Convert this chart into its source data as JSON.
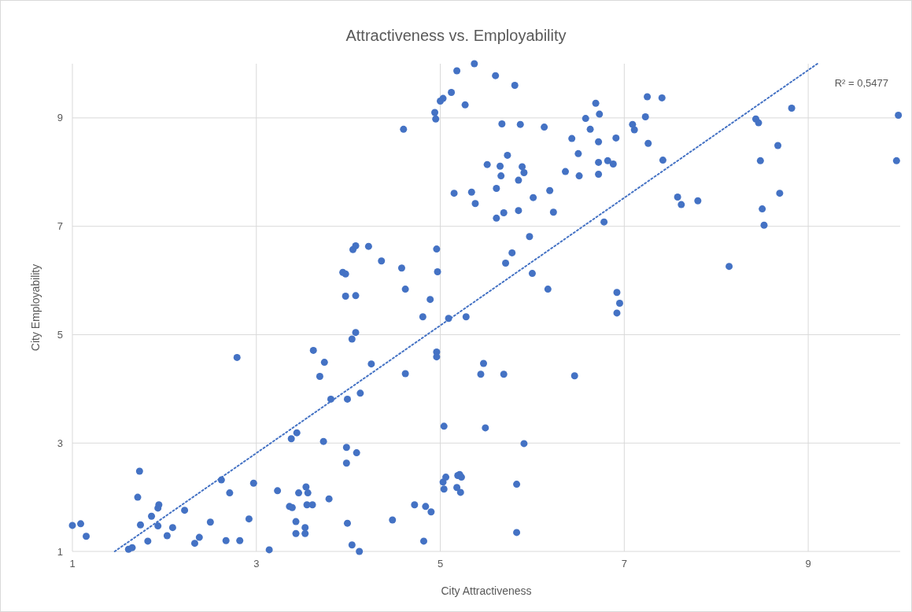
{
  "chart_data": {
    "type": "scatter",
    "title": "Attractiveness vs. Employability",
    "xlabel": "City Attractiveness",
    "ylabel": "City Employability",
    "xlim": [
      1,
      10
    ],
    "ylim": [
      1,
      10
    ],
    "xticks": [
      1,
      3,
      5,
      7,
      9
    ],
    "yticks": [
      1,
      3,
      5,
      7,
      9
    ],
    "grid": true,
    "annotations": [
      "R² = 0,5477"
    ],
    "series": [
      {
        "color": "#4472c4",
        "marker": "circle",
        "x": [
          1.0,
          1.09,
          1.15,
          1.61,
          1.65,
          1.73,
          1.71,
          1.74,
          1.82,
          1.86,
          1.94,
          1.93,
          1.93,
          2.03,
          2.09,
          2.22,
          2.33,
          2.38,
          2.5,
          2.62,
          2.67,
          2.71,
          2.79,
          2.82,
          2.92,
          2.97,
          3.14,
          3.23,
          3.36,
          3.39,
          3.38,
          3.44,
          3.43,
          3.43,
          3.46,
          3.54,
          3.53,
          3.53,
          3.56,
          3.55,
          3.61,
          3.62,
          3.69,
          3.74,
          3.73,
          3.79,
          3.81,
          3.94,
          3.97,
          3.97,
          3.99,
          3.98,
          3.98,
          3.99,
          4.04,
          4.05,
          4.08,
          4.08,
          4.04,
          4.08,
          4.09,
          4.12,
          4.13,
          4.22,
          4.25,
          4.36,
          4.48,
          4.58,
          4.6,
          4.62,
          4.62,
          4.72,
          4.81,
          4.82,
          4.84,
          4.89,
          4.9,
          4.94,
          4.95,
          4.96,
          4.97,
          4.96,
          4.96,
          5.0,
          5.03,
          5.04,
          5.03,
          5.06,
          5.04,
          5.09,
          5.12,
          5.15,
          5.18,
          5.19,
          5.18,
          5.22,
          5.21,
          5.23,
          5.27,
          5.28,
          5.37,
          5.34,
          5.38,
          5.47,
          5.44,
          5.49,
          5.51,
          5.6,
          5.61,
          5.61,
          5.65,
          5.66,
          5.67,
          5.69,
          5.69,
          5.71,
          5.73,
          5.78,
          5.81,
          5.83,
          5.83,
          5.85,
          5.85,
          5.87,
          5.89,
          5.91,
          5.91,
          5.97,
          6.0,
          6.01,
          6.13,
          6.17,
          6.19,
          6.23,
          6.36,
          6.43,
          6.46,
          6.5,
          6.51,
          6.58,
          6.63,
          6.69,
          6.72,
          6.72,
          6.72,
          6.73,
          6.78,
          6.82,
          6.88,
          6.91,
          6.92,
          6.95,
          6.92,
          7.09,
          7.11,
          7.23,
          7.25,
          7.26,
          7.41,
          7.42,
          7.58,
          7.62,
          7.8,
          8.14,
          8.43,
          8.46,
          8.48,
          8.5,
          8.52,
          8.67,
          8.69,
          8.82,
          9.96,
          9.98
        ],
        "values": [
          1.48,
          1.51,
          1.28,
          1.04,
          1.07,
          2.48,
          2.0,
          1.49,
          1.19,
          1.65,
          1.86,
          1.8,
          1.47,
          1.29,
          1.44,
          1.76,
          1.15,
          1.26,
          1.54,
          2.32,
          1.2,
          2.08,
          4.58,
          1.2,
          1.6,
          2.26,
          1.03,
          2.12,
          1.83,
          1.81,
          3.08,
          3.19,
          1.55,
          1.33,
          2.08,
          2.19,
          1.44,
          1.33,
          2.08,
          1.86,
          1.86,
          4.71,
          4.23,
          4.49,
          3.03,
          1.97,
          3.81,
          6.15,
          6.12,
          5.71,
          3.81,
          2.92,
          2.63,
          1.52,
          1.12,
          6.57,
          6.64,
          5.72,
          4.92,
          5.04,
          2.82,
          1.0,
          3.92,
          6.63,
          4.46,
          6.36,
          1.58,
          6.23,
          8.79,
          5.84,
          4.28,
          1.86,
          5.33,
          1.19,
          1.83,
          5.65,
          1.73,
          9.1,
          8.98,
          6.58,
          6.16,
          4.68,
          4.59,
          9.31,
          9.36,
          3.31,
          2.28,
          2.37,
          2.15,
          5.3,
          9.47,
          7.61,
          9.87,
          2.4,
          2.18,
          2.09,
          2.42,
          2.37,
          9.24,
          5.33,
          10.0,
          7.63,
          7.42,
          4.47,
          4.27,
          3.28,
          8.14,
          9.78,
          7.7,
          7.15,
          8.11,
          7.93,
          8.89,
          7.25,
          4.27,
          6.32,
          8.31,
          6.51,
          9.6,
          2.24,
          1.35,
          7.85,
          7.29,
          8.88,
          8.1,
          7.99,
          2.99,
          6.81,
          6.13,
          7.53,
          8.83,
          5.84,
          7.66,
          7.26,
          8.01,
          8.62,
          4.24,
          8.34,
          7.93,
          8.99,
          8.79,
          9.27,
          8.56,
          8.18,
          7.96,
          9.07,
          7.08,
          8.21,
          8.15,
          8.63,
          5.78,
          5.58,
          5.4,
          8.88,
          8.78,
          9.02,
          9.39,
          8.53,
          9.37,
          8.22,
          7.54,
          7.4,
          7.47,
          6.26,
          8.98,
          8.91,
          8.21,
          7.32,
          7.02,
          8.49,
          7.61,
          9.18,
          8.21,
          9.05
        ]
      },
      {
        "type": "line",
        "color": "#4472c4",
        "line_style": "dotted",
        "marker": "none",
        "x": [
          1.46,
          9.1
        ],
        "values": [
          1,
          10
        ]
      }
    ]
  }
}
